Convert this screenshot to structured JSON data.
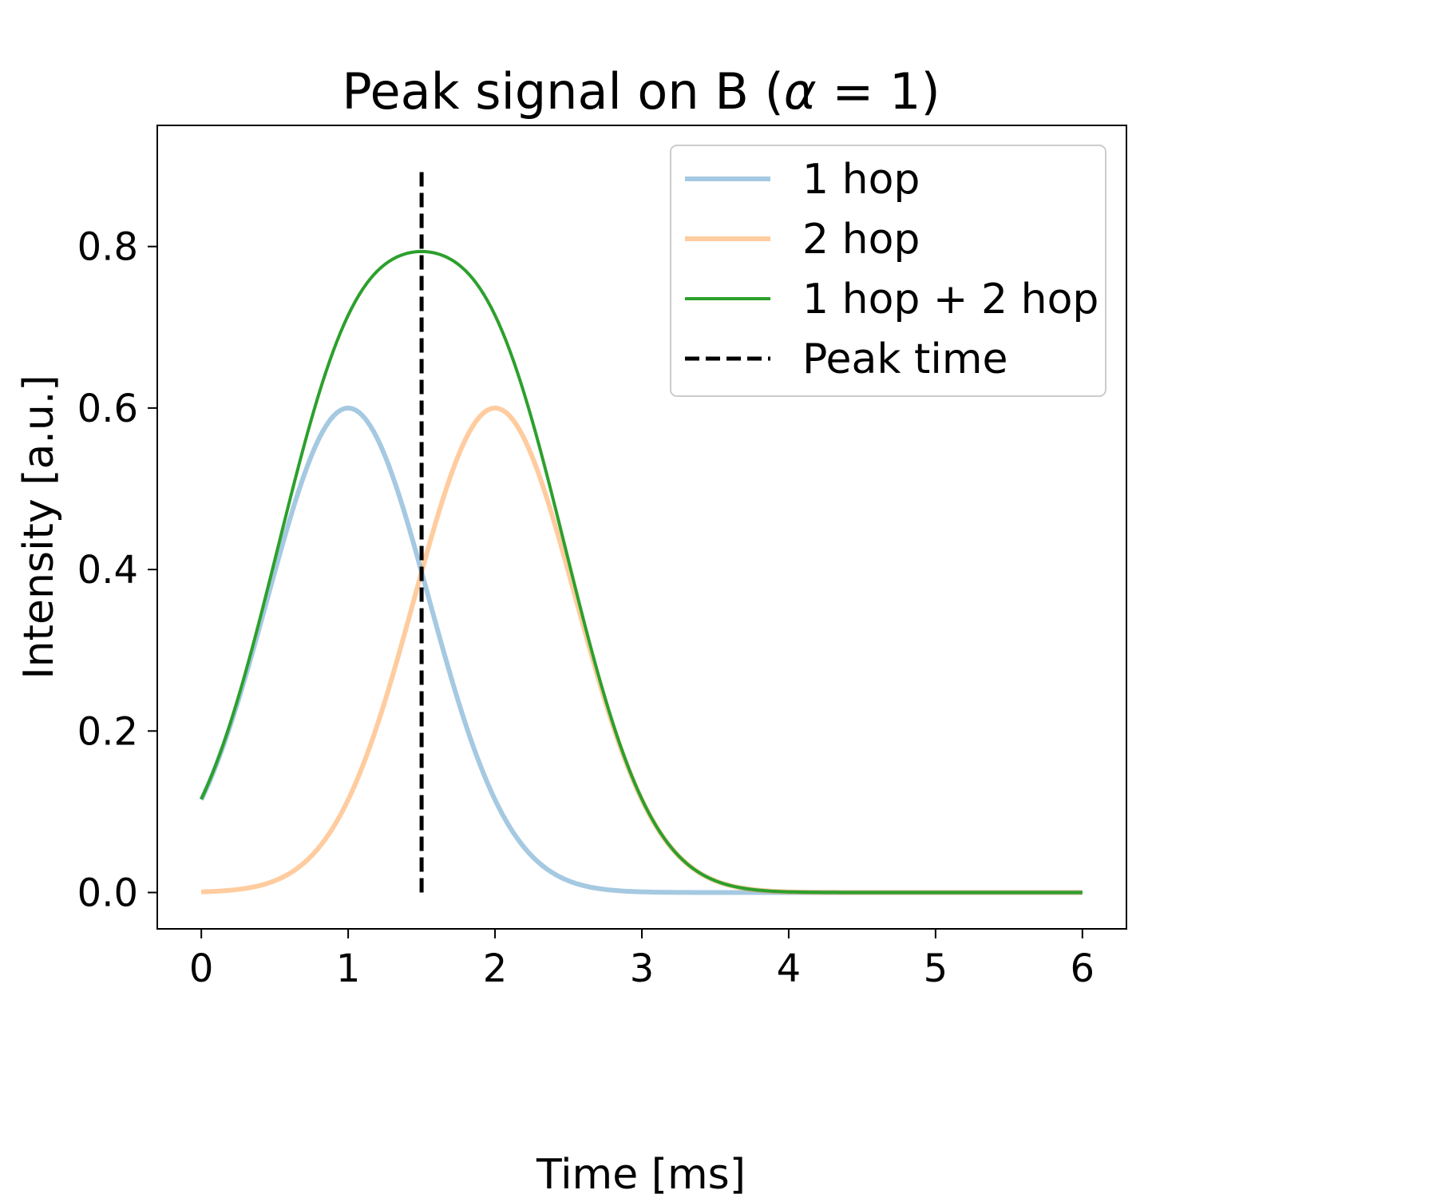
{
  "chart_data": {
    "type": "line",
    "title_prefix": "Peak signal on B (",
    "title_alpha": "α",
    "title_suffix": " = 1)",
    "xlabel": "Time [ms]",
    "ylabel": "Intensity [a.u.]",
    "xlim": [
      -0.3,
      6.3
    ],
    "ylim": [
      -0.045,
      0.95
    ],
    "xticks": [
      0,
      1,
      2,
      3,
      4,
      5,
      6
    ],
    "yticks": [
      0.0,
      0.2,
      0.4,
      0.6,
      0.8
    ],
    "grid": false,
    "legend_position": "top-right",
    "series": [
      {
        "name": "1 hop",
        "color": "#1f77b4",
        "opacity": 0.4,
        "style": "solid",
        "gaussian": {
          "amplitude": 0.6,
          "center": 1.0,
          "sigma": 0.55
        },
        "x_range": [
          0,
          6
        ]
      },
      {
        "name": "2 hop",
        "color": "#ff7f0e",
        "opacity": 0.4,
        "style": "solid",
        "gaussian": {
          "amplitude": 0.6,
          "center": 2.0,
          "sigma": 0.55
        },
        "x_range": [
          0,
          6
        ]
      },
      {
        "name": "1 hop + 2 hop",
        "color": "#2ca02c",
        "opacity": 1.0,
        "style": "solid",
        "sum_of": [
          "1 hop",
          "2 hop"
        ],
        "x_range": [
          0,
          6
        ]
      },
      {
        "name": "Peak time",
        "color": "#000000",
        "opacity": 1.0,
        "style": "dashed",
        "vertical_line": {
          "x": 1.5,
          "y_from": 0.0,
          "y_to": 0.9
        }
      }
    ]
  }
}
